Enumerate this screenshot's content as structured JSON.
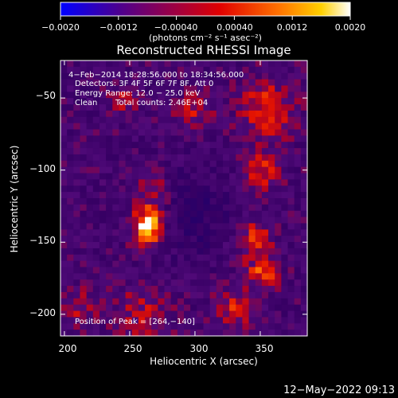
{
  "colorbar": {
    "ticks": [
      "−0.0020",
      "−0.0012",
      "−0.00040",
      "0.00040",
      "0.0012",
      "0.0020"
    ],
    "units_label": "(photons cm⁻² s⁻¹ asec⁻²)"
  },
  "chart_data": {
    "type": "heatmap",
    "title": "Reconstructed RHESSI Image",
    "xlabel": "Heliocentric X (arcsec)",
    "ylabel": "Heliocentric Y (arcsec)",
    "xlim": [
      197,
      386
    ],
    "ylim": [
      -215,
      -24
    ],
    "xticks": [
      200,
      250,
      300,
      350
    ],
    "xtick_labels": [
      "200",
      "250",
      "300",
      "350"
    ],
    "yticks": [
      -50,
      -100,
      -150,
      -200
    ],
    "ytick_labels": [
      "−50",
      "−100",
      "−150",
      "−200"
    ],
    "value_range": [
      -0.002,
      0.002
    ],
    "colormap": [
      "#0000ff",
      "#50007a",
      "#c00000",
      "#ff3000",
      "#ff9a00",
      "#ffffff"
    ],
    "annotations": {
      "time_range": "4−Feb−2014 18:28:56.000 to 18:34:56.000",
      "detectors": "Detectors: 3F 4F 5F 6F 7F 8F, Att 0",
      "energy_range": "Energy Range: 12.0 − 25.0 keV",
      "clean_label": "Clean",
      "total_counts": "Total counts: 2.46E+04",
      "peak_position": "Position of Peak = [264,−140]"
    },
    "peak": {
      "x": 264,
      "y": -140
    }
  },
  "footer": {
    "date_stamp": "12−May−2022 09:13"
  }
}
